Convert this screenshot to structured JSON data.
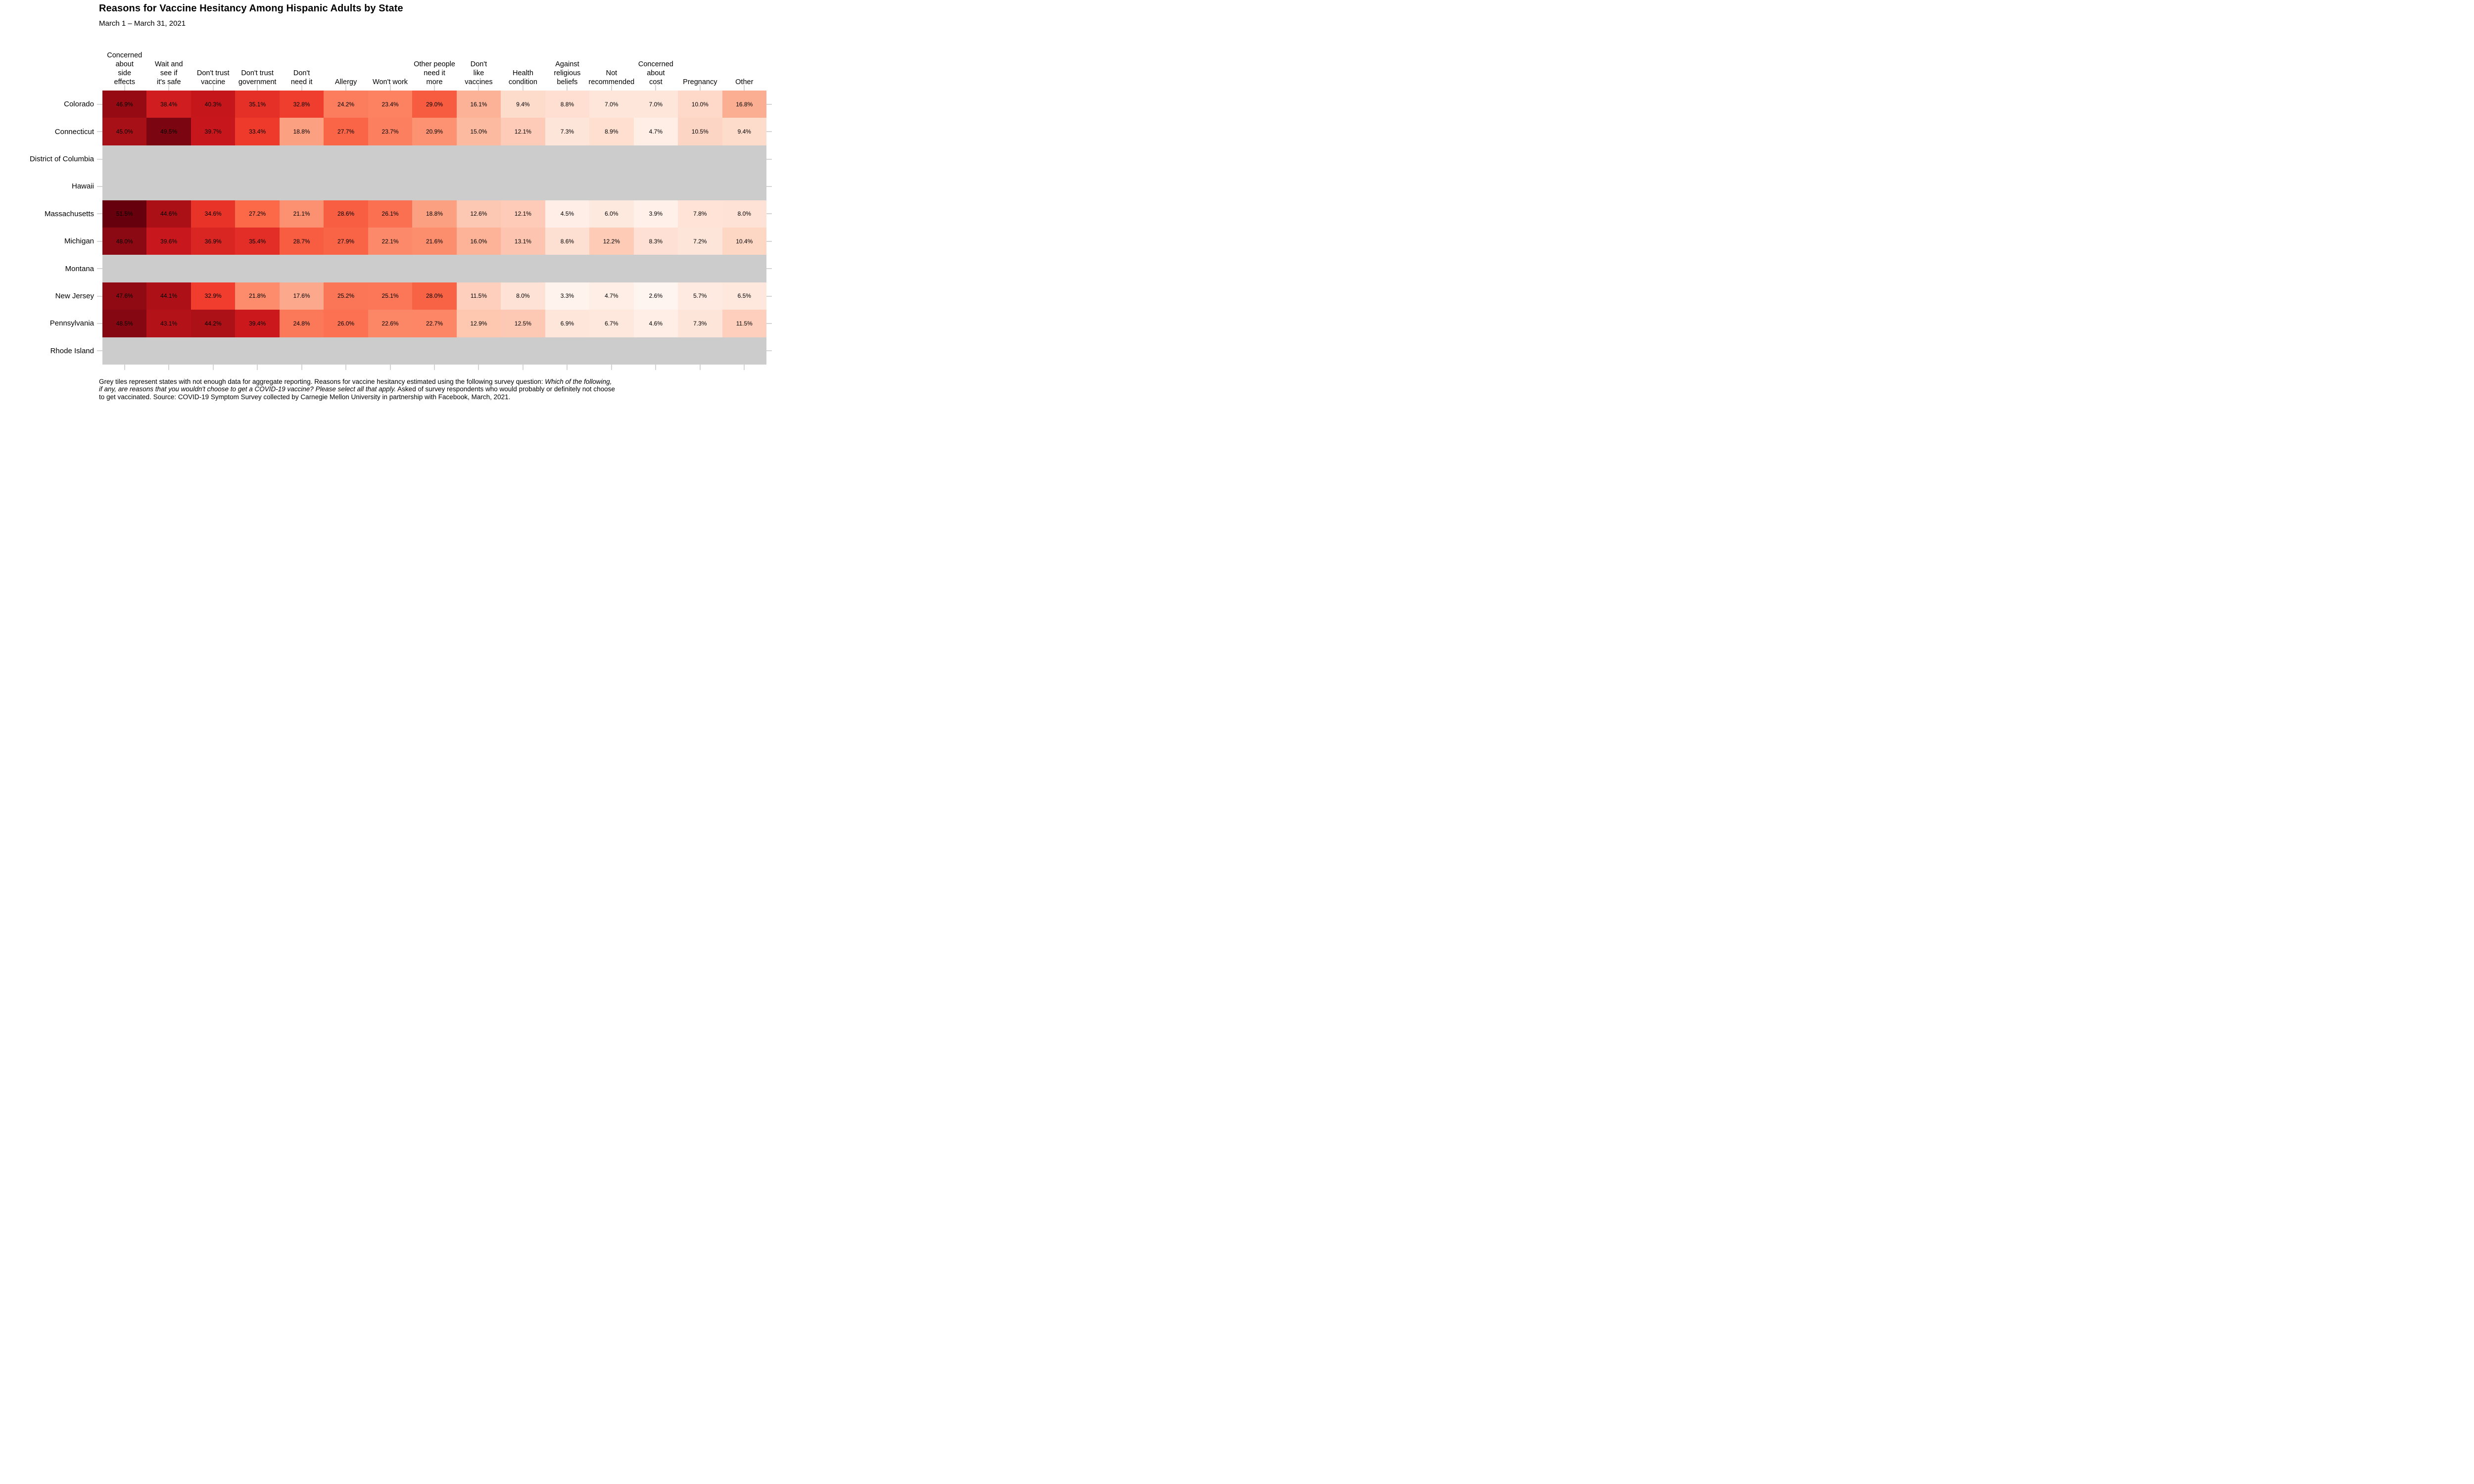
{
  "title": "Reasons for Vaccine Hesitancy Among Hispanic Adults by State",
  "subtitle": "March 1 – March 31, 2021",
  "chart_data": {
    "type": "heatmap",
    "value_suffix": "%",
    "columns": [
      {
        "label": "Concerned about side effects",
        "lines": [
          "Concerned",
          "about",
          "side",
          "effects"
        ]
      },
      {
        "label": "Wait and see if it's safe",
        "lines": [
          "Wait and",
          "see if",
          "it's safe"
        ]
      },
      {
        "label": "Don't trust vaccine",
        "lines": [
          "Don't trust",
          "vaccine"
        ]
      },
      {
        "label": "Don't trust government",
        "lines": [
          "Don't trust",
          "government"
        ]
      },
      {
        "label": "Don't need it",
        "lines": [
          "Don't",
          "need it"
        ]
      },
      {
        "label": "Allergy",
        "lines": [
          "Allergy"
        ]
      },
      {
        "label": "Won't work",
        "lines": [
          "Won't work"
        ]
      },
      {
        "label": "Other people need it more",
        "lines": [
          "Other people",
          "need it",
          "more"
        ]
      },
      {
        "label": "Don't like vaccines",
        "lines": [
          "Don't",
          "like",
          "vaccines"
        ]
      },
      {
        "label": "Health condition",
        "lines": [
          "Health",
          "condition"
        ]
      },
      {
        "label": "Against religious beliefs",
        "lines": [
          "Against",
          "religious",
          "beliefs"
        ]
      },
      {
        "label": "Not recommended",
        "lines": [
          "Not",
          "recommended"
        ]
      },
      {
        "label": "Concerned about cost",
        "lines": [
          "Concerned",
          "about",
          "cost"
        ]
      },
      {
        "label": "Pregnancy",
        "lines": [
          "Pregnancy"
        ]
      },
      {
        "label": "Other",
        "lines": [
          "Other"
        ]
      }
    ],
    "series": [
      {
        "name": "Colorado",
        "values": [
          46.9,
          38.4,
          40.3,
          35.1,
          32.8,
          24.2,
          23.4,
          29.0,
          16.1,
          9.4,
          8.8,
          7.0,
          7.0,
          10.0,
          16.8
        ]
      },
      {
        "name": "Connecticut",
        "values": [
          45.0,
          49.5,
          39.7,
          33.4,
          18.8,
          27.7,
          23.7,
          20.9,
          15.0,
          12.1,
          7.3,
          8.9,
          4.7,
          10.5,
          9.4
        ]
      },
      {
        "name": "District of Columbia",
        "values": null
      },
      {
        "name": "Hawaii",
        "values": null
      },
      {
        "name": "Massachusetts",
        "values": [
          51.5,
          44.6,
          34.6,
          27.2,
          21.1,
          28.6,
          26.1,
          18.8,
          12.6,
          12.1,
          4.5,
          6.0,
          3.9,
          7.8,
          8.0
        ]
      },
      {
        "name": "Michigan",
        "values": [
          48.0,
          39.6,
          36.9,
          35.4,
          28.7,
          27.9,
          22.1,
          21.6,
          16.0,
          13.1,
          8.6,
          12.2,
          8.3,
          7.2,
          10.4
        ]
      },
      {
        "name": "Montana",
        "values": null
      },
      {
        "name": "New Jersey",
        "values": [
          47.6,
          44.1,
          32.9,
          21.8,
          17.6,
          25.2,
          25.1,
          28.0,
          11.5,
          8.0,
          3.3,
          4.7,
          2.6,
          5.7,
          6.5
        ]
      },
      {
        "name": "Pennsylvania",
        "values": [
          48.5,
          43.1,
          44.2,
          39.4,
          24.8,
          26.0,
          22.6,
          22.7,
          12.9,
          12.5,
          6.9,
          6.7,
          4.6,
          7.3,
          11.5
        ]
      },
      {
        "name": "Rhode Island",
        "values": null
      }
    ],
    "color_scale": {
      "type": "sequential-reds",
      "domain": [
        2.6,
        51.5
      ],
      "stops": [
        "#fff5f0",
        "#fee0d2",
        "#fcbba1",
        "#fc9272",
        "#fb6a4a",
        "#ef3b2c",
        "#cb181d",
        "#a50f15",
        "#67000d"
      ]
    },
    "missing_color": "#cccccc",
    "tick_color": "#d5d5d5",
    "value_text_color": "#000000",
    "legend": "none",
    "grid": "off"
  },
  "footnote": {
    "lines": [
      [
        {
          "text": "Grey tiles represent states with not enough data for aggregate reporting. Reasons for vaccine hesitancy estimated using the following survey question: ",
          "italic": false
        },
        {
          "text": "Which of the following,",
          "italic": true
        }
      ],
      [
        {
          "text": "if any, are reasons that you wouldn't choose to get a COVID-19 vaccine? Please select all that apply.",
          "italic": true
        },
        {
          "text": " Asked of survey respondents who would probably or definitely not choose",
          "italic": false
        }
      ],
      [
        {
          "text": "to get vaccinated. Source: COVID-19 Symptom Survey collected by Carnegie Mellon University in partnership with Facebook, March, 2021.",
          "italic": false
        }
      ]
    ]
  }
}
